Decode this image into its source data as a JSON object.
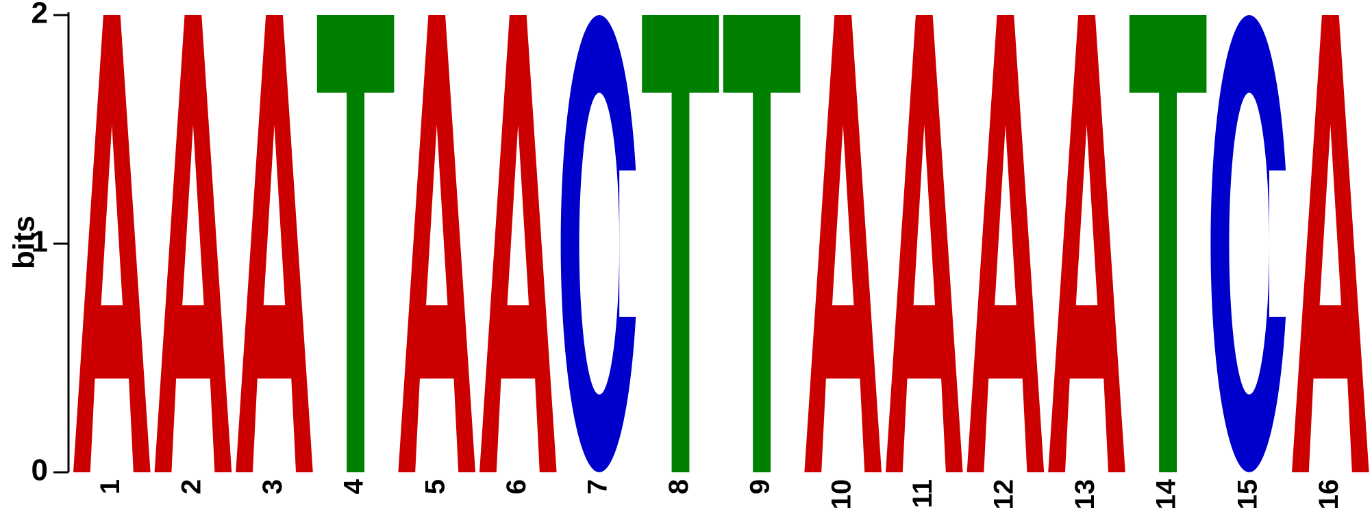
{
  "chart_data": {
    "type": "sequence-logo",
    "title": "",
    "xlabel": "",
    "ylabel": "bits",
    "ylim": [
      0,
      2
    ],
    "yticks": [
      0,
      1,
      2
    ],
    "positions": [
      {
        "pos": "1",
        "letter": "A",
        "bits": 2
      },
      {
        "pos": "2",
        "letter": "A",
        "bits": 2
      },
      {
        "pos": "3",
        "letter": "A",
        "bits": 2
      },
      {
        "pos": "4",
        "letter": "T",
        "bits": 2
      },
      {
        "pos": "5",
        "letter": "A",
        "bits": 2
      },
      {
        "pos": "6",
        "letter": "A",
        "bits": 2
      },
      {
        "pos": "7",
        "letter": "C",
        "bits": 2
      },
      {
        "pos": "8",
        "letter": "T",
        "bits": 2
      },
      {
        "pos": "9",
        "letter": "T",
        "bits": 2
      },
      {
        "pos": "10",
        "letter": "A",
        "bits": 2
      },
      {
        "pos": "11",
        "letter": "A",
        "bits": 2
      },
      {
        "pos": "12",
        "letter": "A",
        "bits": 2
      },
      {
        "pos": "13",
        "letter": "A",
        "bits": 2
      },
      {
        "pos": "14",
        "letter": "T",
        "bits": 2
      },
      {
        "pos": "15",
        "letter": "C",
        "bits": 2
      },
      {
        "pos": "16",
        "letter": "A",
        "bits": 2
      }
    ],
    "colors": {
      "A": "#cc0000",
      "C": "#0000cc",
      "G": "#ffb300",
      "T": "#008000"
    }
  }
}
